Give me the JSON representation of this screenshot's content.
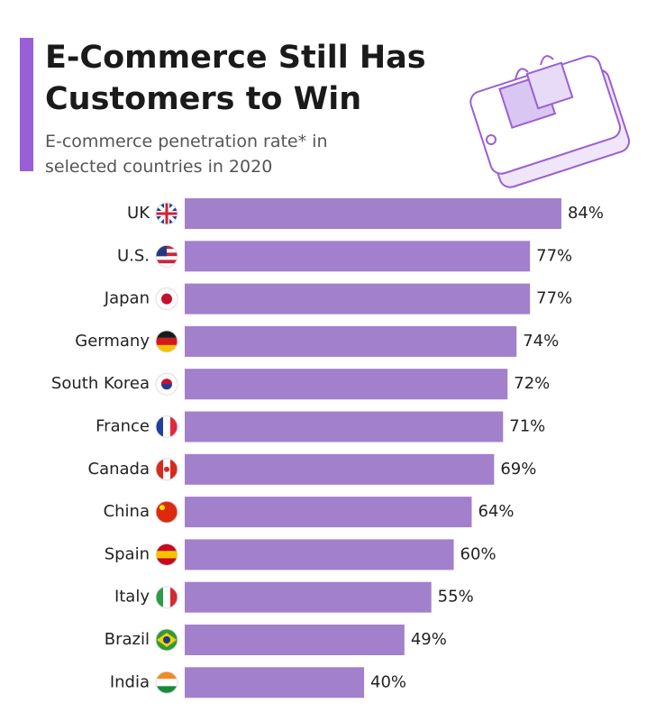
{
  "chart_data": {
    "type": "bar",
    "orientation": "horizontal",
    "title_lines": [
      "E-Commerce Still Has",
      "Customers to Win"
    ],
    "subtitle_lines": [
      "E-commerce penetration rate* in",
      "selected countries in 2020"
    ],
    "categories": [
      "UK",
      "U.S.",
      "Japan",
      "Germany",
      "South Korea",
      "France",
      "Canada",
      "China",
      "Spain",
      "Italy",
      "Brazil",
      "India"
    ],
    "values": [
      84,
      77,
      77,
      74,
      72,
      71,
      69,
      64,
      60,
      55,
      49,
      40
    ],
    "value_labels": [
      "84%",
      "77%",
      "77%",
      "74%",
      "72%",
      "71%",
      "69%",
      "64%",
      "60%",
      "55%",
      "49%",
      "40%"
    ],
    "color": "#a280cc"
  }
}
